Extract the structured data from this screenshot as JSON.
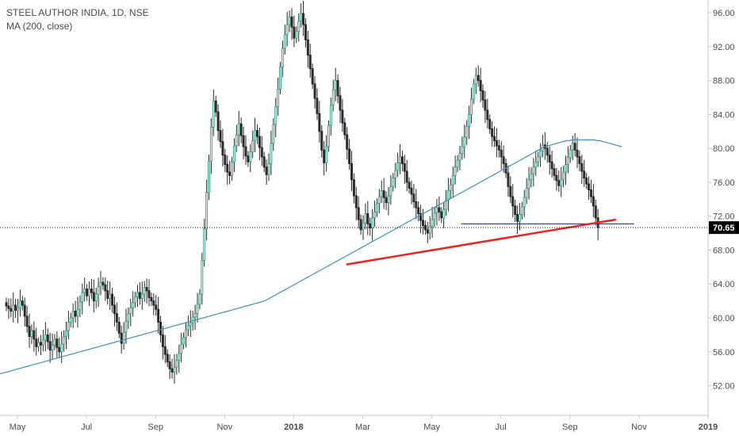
{
  "chart_data": {
    "type": "candlestick",
    "title": "STEEL AUTHOR INDIA, 1D, NSE",
    "indicator": "MA (200, close)",
    "last_price_label": "70.65",
    "last_price": 70.65,
    "ylim": [
      48.5,
      97.5
    ],
    "y_ticks": [
      52,
      56,
      60,
      64,
      68,
      72,
      76,
      80,
      84,
      88,
      92,
      96
    ],
    "y_tick_labels": [
      "52.00",
      "56.00",
      "60.00",
      "64.00",
      "68.00",
      "72.00",
      "76.00",
      "80.00",
      "84.00",
      "88.00",
      "92.00",
      "96.00"
    ],
    "x_labels": [
      "May",
      "Jul",
      "Sep",
      "Nov",
      "2018",
      "Mar",
      "May",
      "Jul",
      "Sep",
      "Nov",
      "2019"
    ],
    "x_label_bold": [
      false,
      false,
      false,
      false,
      true,
      false,
      false,
      false,
      false,
      false,
      true
    ],
    "x_label_index": [
      0,
      42,
      84,
      126,
      168,
      210,
      252,
      294,
      336,
      378,
      420
    ],
    "bars_total_slots": 420,
    "closes": [
      61.4,
      61.1,
      60.8,
      61.5,
      60.9,
      61.2,
      62.0,
      61.5,
      60.2,
      59.0,
      57.8,
      58.5,
      57.5,
      56.6,
      57.1,
      56.8,
      57.4,
      58.0,
      57.2,
      56.2,
      56.8,
      57.5,
      56.5,
      56.0,
      56.9,
      57.8,
      58.5,
      59.5,
      60.0,
      60.8,
      60.2,
      61.0,
      61.9,
      63.0,
      63.4,
      62.6,
      63.4,
      63.0,
      62.0,
      62.8,
      63.7,
      64.2,
      63.9,
      63.2,
      62.3,
      62.8,
      61.5,
      60.5,
      59.5,
      58.2,
      57.0,
      58.3,
      59.6,
      60.5,
      61.2,
      61.8,
      62.5,
      63.0,
      62.3,
      62.8,
      63.6,
      63.2,
      62.4,
      62.0,
      61.5,
      61.0,
      59.5,
      58.0,
      56.6,
      55.7,
      54.8,
      54.0,
      53.6,
      54.2,
      55.0,
      55.8,
      56.9,
      57.7,
      58.6,
      59.1,
      59.4,
      60.1,
      60.5,
      61.6,
      62.8,
      66.8,
      70.5,
      74.8,
      78.5,
      82.5,
      85.6,
      84.3,
      82.1,
      80.8,
      79.2,
      78.1,
      77.2,
      76.8,
      78.4,
      80.3,
      81.6,
      82.9,
      81.5,
      80.2,
      79.1,
      78.4,
      79.6,
      80.9,
      82.1,
      81.4,
      80.1,
      79.0,
      77.8,
      76.9,
      78.2,
      80.6,
      82.8,
      84.9,
      87.0,
      89.6,
      91.8,
      93.4,
      94.6,
      95.5,
      94.3,
      93.0,
      93.8,
      95.0,
      95.9,
      94.6,
      92.8,
      91.0,
      89.4,
      87.6,
      85.9,
      84.1,
      82.0,
      79.8,
      78.3,
      80.2,
      82.7,
      85.1,
      86.9,
      88.0,
      86.2,
      84.5,
      83.0,
      81.6,
      79.9,
      78.2,
      76.3,
      74.4,
      73.0,
      71.6,
      70.4,
      71.2,
      72.3,
      71.1,
      70.6,
      71.8,
      72.5,
      73.5,
      74.3,
      75.0,
      74.2,
      73.6,
      74.4,
      75.5,
      76.5,
      77.4,
      78.3,
      79.0,
      78.2,
      77.3,
      76.0,
      75.3,
      74.6,
      73.7,
      73.0,
      72.3,
      71.5,
      70.9,
      70.4,
      70.0,
      70.8,
      71.6,
      72.4,
      73.0,
      72.5,
      71.8,
      72.8,
      73.9,
      75.0,
      75.7,
      76.8,
      77.8,
      78.6,
      79.4,
      80.2,
      81.3,
      82.6,
      84.0,
      85.8,
      87.6,
      88.6,
      88.0,
      86.8,
      85.7,
      84.5,
      83.4,
      82.3,
      81.4,
      80.9,
      80.3,
      79.8,
      79.0,
      78.2,
      77.1,
      75.5,
      74.3,
      73.2,
      72.2,
      71.4,
      72.2,
      73.1,
      74.2,
      75.3,
      76.3,
      77.0,
      77.8,
      78.4,
      79.0,
      79.7,
      80.4,
      80.0,
      79.2,
      78.4,
      77.6,
      76.8,
      76.2,
      75.6,
      76.3,
      77.2,
      78.1,
      78.9,
      79.8,
      80.6,
      79.8,
      79.0,
      78.2,
      77.3,
      76.5,
      75.8,
      75.1,
      74.3,
      73.2,
      71.8,
      70.65
    ],
    "ma": [
      53.4,
      53.5,
      53.6,
      53.7,
      53.8,
      53.9,
      54.0,
      54.1,
      54.2,
      54.3,
      54.4,
      54.5,
      54.6,
      54.7,
      54.8,
      54.9,
      55.0,
      55.1,
      55.2,
      55.3,
      55.4,
      55.5,
      55.6,
      55.7,
      55.8,
      55.9,
      56.0,
      56.1,
      56.2,
      56.3,
      56.4,
      56.5,
      56.6,
      56.7,
      56.8,
      56.9,
      57.0,
      57.1,
      57.2,
      57.3,
      57.4,
      57.5,
      57.6,
      57.7,
      57.8,
      57.9,
      58.0,
      58.1,
      58.2,
      58.3,
      58.4,
      58.5,
      58.6,
      58.7,
      58.8,
      58.9,
      59.0,
      59.1,
      59.2,
      59.3,
      59.4,
      59.5,
      59.6,
      59.7,
      59.8,
      59.9,
      60.0,
      60.1,
      60.2,
      60.3,
      60.4,
      60.5,
      60.6,
      60.7,
      60.8,
      60.9,
      61.0,
      61.1,
      61.2,
      61.3,
      61.4,
      61.5,
      61.6,
      61.7,
      61.8,
      61.9,
      62.0,
      62.2,
      62.4,
      62.6,
      62.8,
      63.0,
      63.2,
      63.4,
      63.6,
      63.8,
      64.0,
      64.2,
      64.4,
      64.6,
      64.8,
      65.0,
      65.2,
      65.4,
      65.6,
      65.8,
      66.0,
      66.2,
      66.4,
      66.6,
      66.8,
      67.0,
      67.2,
      67.4,
      67.6,
      67.8,
      68.0,
      68.2,
      68.4,
      68.6,
      68.8,
      69.0,
      69.2,
      69.4,
      69.6,
      69.8,
      70.0,
      70.2,
      70.4,
      70.6,
      70.8,
      71.0,
      71.2,
      71.4,
      71.6,
      71.8,
      72.0,
      72.2,
      72.4,
      72.6,
      72.8,
      73.0,
      73.2,
      73.4,
      73.6,
      73.8,
      74.0,
      74.2,
      74.4,
      74.6,
      74.8,
      75.0,
      75.2,
      75.4,
      75.6,
      75.8,
      76.0,
      76.2,
      76.4,
      76.6,
      76.8,
      77.0,
      77.2,
      77.4,
      77.6,
      77.8,
      78.0,
      78.2,
      78.4,
      78.6,
      78.8,
      79.0,
      79.2,
      79.4,
      79.6,
      79.8,
      80.0,
      80.2,
      80.3,
      80.4,
      80.5,
      80.6,
      80.7,
      80.8,
      80.9,
      80.9,
      81.0,
      81.0,
      81.0,
      81.0,
      81.0,
      81.0,
      81.0,
      81.0,
      80.9,
      80.9,
      80.8,
      80.7,
      80.6,
      80.5,
      80.4,
      80.3,
      80.2
    ],
    "ma_start_index": 0,
    "ma_end_index": 340,
    "annotations": {
      "support_line": {
        "x0_index": 200,
        "y0": 66.3,
        "x1_index": 364,
        "y1": 71.6,
        "color": "#ee2222"
      },
      "horizontal_line": {
        "x0_index": 270,
        "x1_index": 375,
        "y": 71.1,
        "color": "#1a237e"
      },
      "last_price_dotted": true
    },
    "colors": {
      "up": "#46a28e",
      "down": "#2a2a2a",
      "ma": "#3d93b7",
      "axis_text": "#4a4a4a",
      "badge_bg": "#000000",
      "badge_text": "#ffffff"
    }
  }
}
